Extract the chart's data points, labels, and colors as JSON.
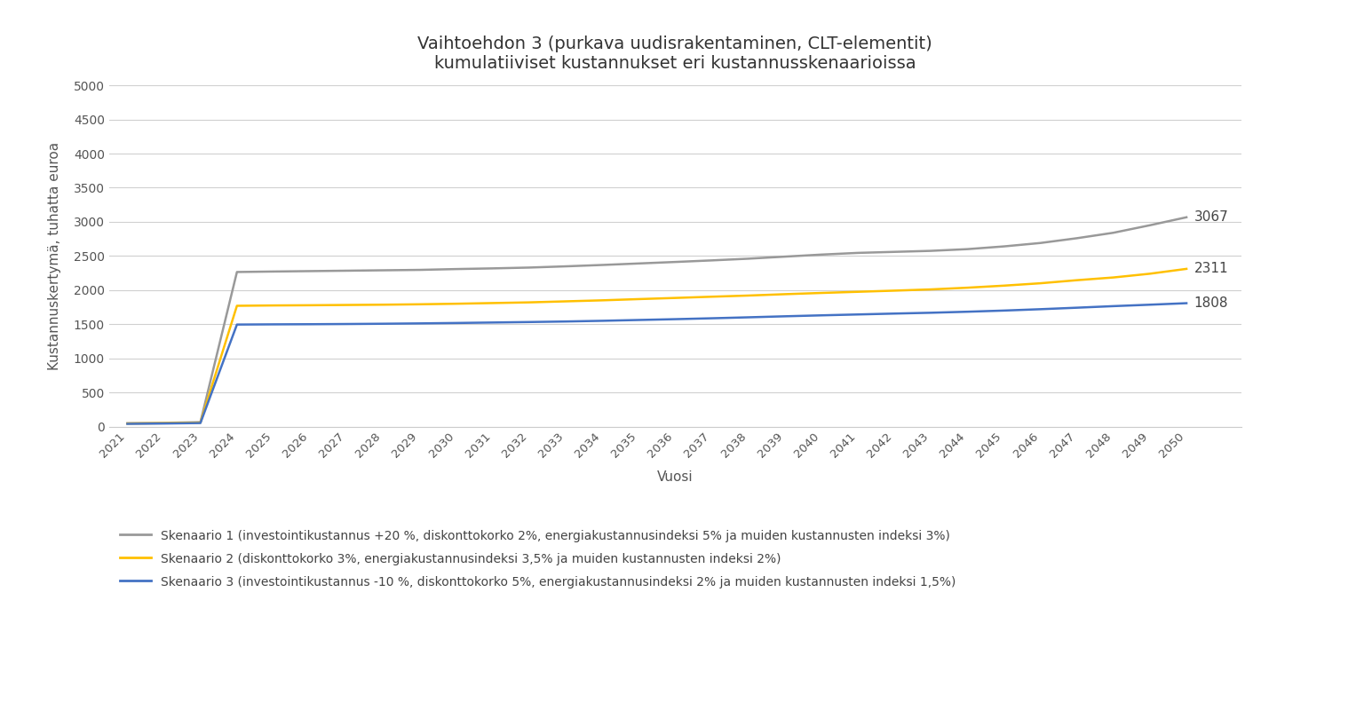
{
  "title_line1": "Vaihtoehdon 3 (purkava uudisrakentaminen, CLT-elementit)",
  "title_line2": "kumulatiiviset kustannukset eri kustannusskenaarioissa",
  "xlabel": "Vuosi",
  "ylabel": "Kustannuskertymä, tuhatta euroa",
  "years": [
    2021,
    2022,
    2023,
    2024,
    2025,
    2026,
    2027,
    2028,
    2029,
    2030,
    2031,
    2032,
    2033,
    2034,
    2035,
    2036,
    2037,
    2038,
    2039,
    2040,
    2041,
    2042,
    2043,
    2044,
    2045,
    2046,
    2047,
    2048,
    2049,
    2050
  ],
  "scenario1": [
    50,
    55,
    65,
    2265,
    2272,
    2278,
    2284,
    2290,
    2296,
    2308,
    2318,
    2330,
    2348,
    2368,
    2390,
    2412,
    2435,
    2460,
    2490,
    2520,
    2545,
    2560,
    2575,
    2600,
    2640,
    2690,
    2760,
    2840,
    2950,
    3067
  ],
  "scenario2": [
    45,
    50,
    58,
    1770,
    1775,
    1778,
    1782,
    1786,
    1792,
    1800,
    1810,
    1820,
    1835,
    1850,
    1868,
    1885,
    1903,
    1920,
    1940,
    1958,
    1975,
    1992,
    2010,
    2035,
    2065,
    2100,
    2145,
    2185,
    2240,
    2311
  ],
  "scenario3": [
    40,
    45,
    52,
    1495,
    1498,
    1500,
    1503,
    1507,
    1512,
    1518,
    1525,
    1532,
    1540,
    1550,
    1562,
    1574,
    1587,
    1601,
    1616,
    1630,
    1643,
    1656,
    1668,
    1683,
    1700,
    1720,
    1742,
    1765,
    1786,
    1808
  ],
  "color1": "#999999",
  "color2": "#FFC000",
  "color3": "#4472C4",
  "end_label1": "3067",
  "end_label2": "2311",
  "end_label3": "1808",
  "legend1": "Skenaario 1 (investointikustannus +20 %, diskonttokorko 2%, energiakustannusindeksi 5% ja muiden kustannusten indeksi 3%)",
  "legend2": "Skenaario 2 (diskonttokorko 3%, energiakustannusindeksi 3,5% ja muiden kustannusten indeksi 2%)",
  "legend3": "Skenaario 3 (investointikustannus -10 %, diskonttokorko 5%, energiakustannusindeksi 2% ja muiden kustannusten indeksi 1,5%)",
  "ylim": [
    0,
    5000
  ],
  "yticks": [
    0,
    500,
    1000,
    1500,
    2000,
    2500,
    3000,
    3500,
    4000,
    4500,
    5000
  ],
  "background_color": "#ffffff",
  "grid_color": "#d0d0d0"
}
